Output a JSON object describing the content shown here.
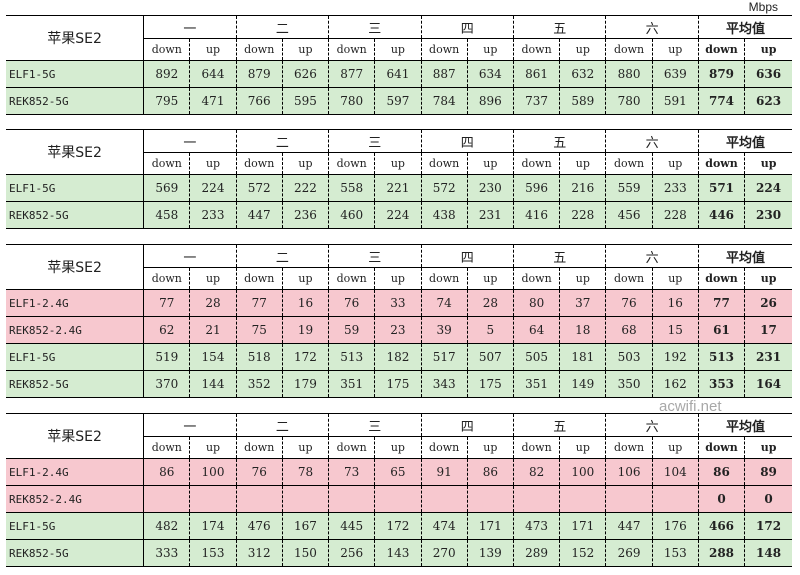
{
  "unit": "Mbps",
  "watermark": "acwifi.net",
  "device": "苹果SE2",
  "groups": [
    "一",
    "二",
    "三",
    "四",
    "五",
    "六",
    "平均值"
  ],
  "sub_labels": [
    "down",
    "up"
  ],
  "colors": {
    "green": "#d5ecd1",
    "pink": "#f7c8cf"
  },
  "tables": [
    {
      "rows": [
        {
          "label": "ELF1-5G",
          "color": "green",
          "values": [
            "892",
            "644",
            "879",
            "626",
            "877",
            "641",
            "887",
            "634",
            "861",
            "632",
            "880",
            "639",
            "879",
            "636"
          ]
        },
        {
          "label": "REK852-5G",
          "color": "green",
          "values": [
            "795",
            "471",
            "766",
            "595",
            "780",
            "597",
            "784",
            "896",
            "737",
            "589",
            "780",
            "591",
            "774",
            "623"
          ]
        }
      ]
    },
    {
      "rows": [
        {
          "label": "ELF1-5G",
          "color": "green",
          "values": [
            "569",
            "224",
            "572",
            "222",
            "558",
            "221",
            "572",
            "230",
            "596",
            "216",
            "559",
            "233",
            "571",
            "224"
          ]
        },
        {
          "label": "REK852-5G",
          "color": "green",
          "values": [
            "458",
            "233",
            "447",
            "236",
            "460",
            "224",
            "438",
            "231",
            "416",
            "228",
            "456",
            "228",
            "446",
            "230"
          ]
        }
      ]
    },
    {
      "rows": [
        {
          "label": "ELF1-2.4G",
          "color": "pink",
          "values": [
            "77",
            "28",
            "77",
            "16",
            "76",
            "33",
            "74",
            "28",
            "80",
            "37",
            "76",
            "16",
            "77",
            "26"
          ]
        },
        {
          "label": "REK852-2.4G",
          "color": "pink",
          "values": [
            "62",
            "21",
            "75",
            "19",
            "59",
            "23",
            "39",
            "5",
            "64",
            "18",
            "68",
            "15",
            "61",
            "17"
          ]
        },
        {
          "label": "ELF1-5G",
          "color": "green",
          "values": [
            "519",
            "154",
            "518",
            "172",
            "513",
            "182",
            "517",
            "507",
            "505",
            "181",
            "503",
            "192",
            "513",
            "231"
          ]
        },
        {
          "label": "REK852-5G",
          "color": "green",
          "values": [
            "370",
            "144",
            "352",
            "179",
            "351",
            "175",
            "343",
            "175",
            "351",
            "149",
            "350",
            "162",
            "353",
            "164"
          ]
        }
      ]
    },
    {
      "rows": [
        {
          "label": "ELF1-2.4G",
          "color": "pink",
          "values": [
            "86",
            "100",
            "76",
            "78",
            "73",
            "65",
            "91",
            "86",
            "82",
            "100",
            "106",
            "104",
            "86",
            "89"
          ]
        },
        {
          "label": "REK852-2.4G",
          "color": "pink",
          "values": [
            "",
            "",
            "",
            "",
            "",
            "",
            "",
            "",
            "",
            "",
            "",
            "",
            "0",
            "0"
          ]
        },
        {
          "label": "ELF1-5G",
          "color": "green",
          "values": [
            "482",
            "174",
            "476",
            "167",
            "445",
            "172",
            "474",
            "171",
            "473",
            "171",
            "447",
            "176",
            "466",
            "172"
          ]
        },
        {
          "label": "REK852-5G",
          "color": "green",
          "values": [
            "333",
            "153",
            "312",
            "150",
            "256",
            "143",
            "270",
            "139",
            "289",
            "152",
            "269",
            "153",
            "288",
            "148"
          ]
        }
      ]
    }
  ]
}
